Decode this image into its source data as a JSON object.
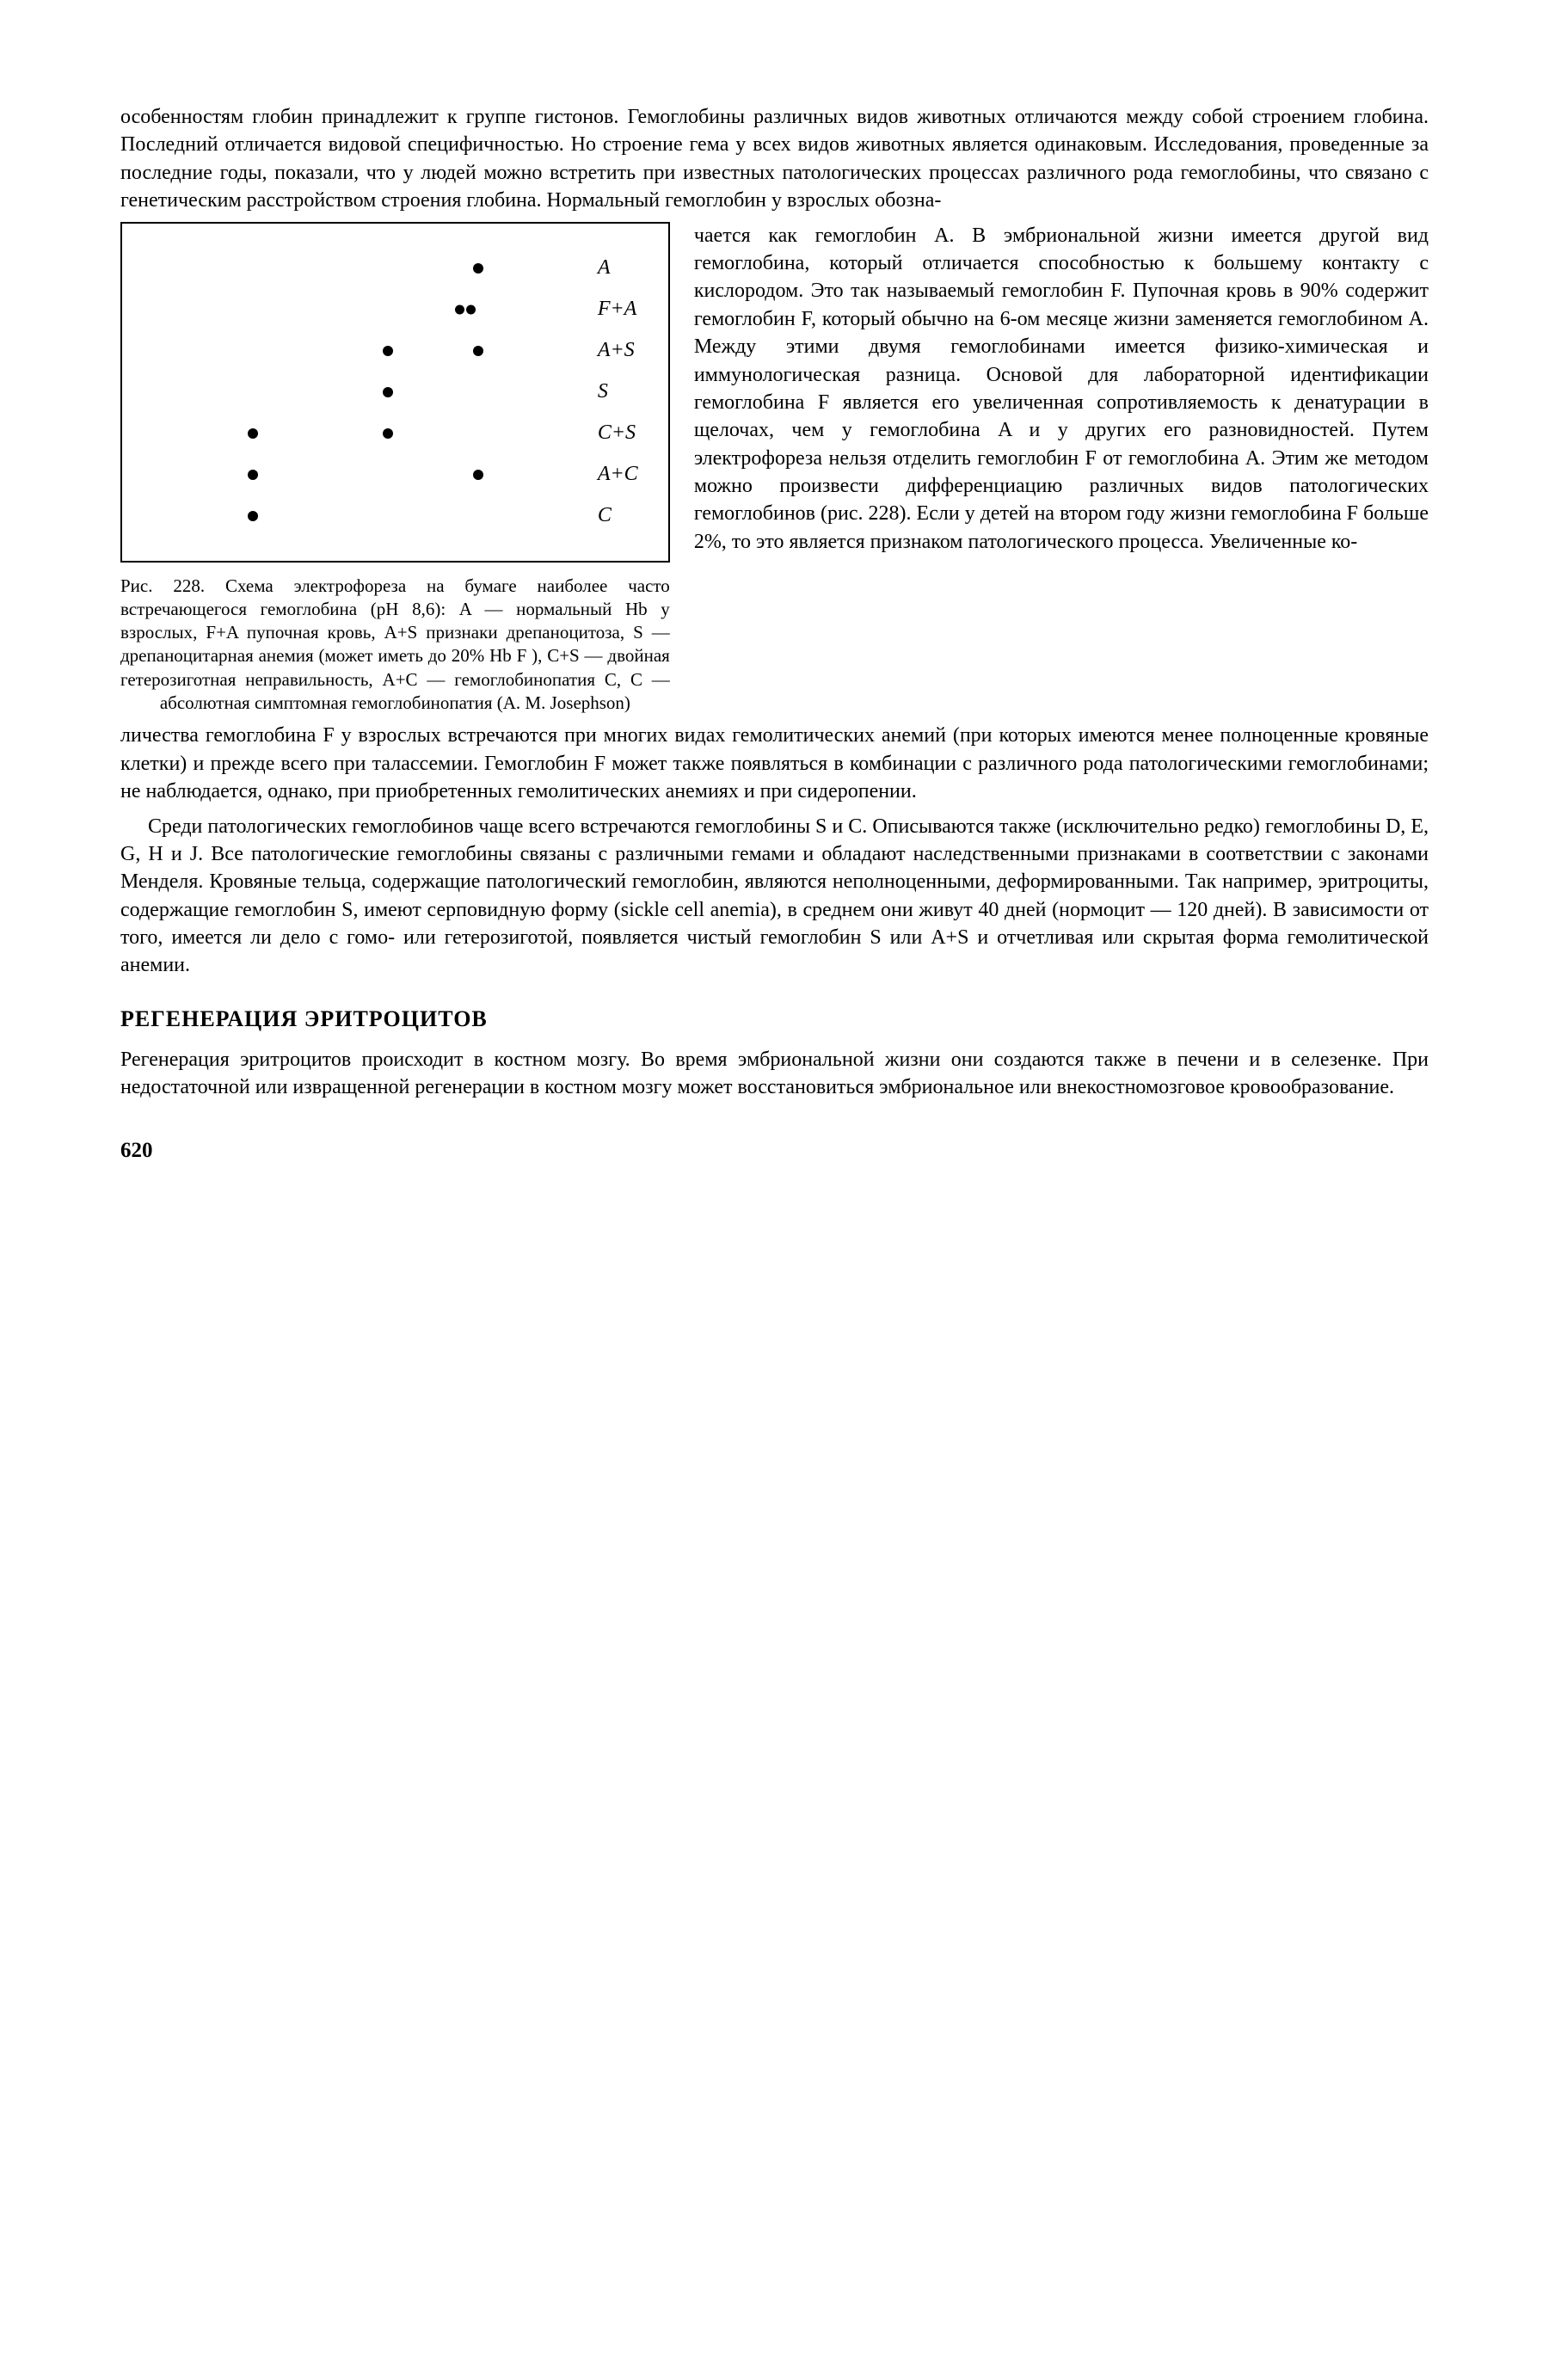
{
  "para_top": "особенностям глобин принадлежит к группе гистонов. Гемоглобины различных видов животных отличаются между собой строением глобина. Последний отличается видовой специфичностью. Но строение гема у всех видов животных является одинаковым. Исследования, проведенные за последние годы, показали, что у людей можно встретить при известных патологических процессах различного рода гемоглобины, что связано с генетическим расстройством строения глобина. Нормальный гемоглобин у взрослых обозна-",
  "figure": {
    "rows": [
      {
        "label": "A",
        "dots": [
          74
        ]
      },
      {
        "label": "F+A",
        "dots": [
          70,
          74
        ],
        "pair": true
      },
      {
        "label": "A+S",
        "dots": [
          54,
          74
        ]
      },
      {
        "label": "S",
        "dots": [
          54
        ]
      },
      {
        "label": "C+S",
        "dots": [
          24,
          54
        ]
      },
      {
        "label": "A+C",
        "dots": [
          24,
          74
        ]
      },
      {
        "label": "C",
        "dots": [
          24
        ]
      }
    ],
    "border_color": "#000000",
    "dot_color": "#000000"
  },
  "caption": "Рис. 228. Схема электрофореза на бумаге наиболее часто встречающегося гемоглобина (pH 8,6): A — нормальный Hb у взрослых, F+A пупочная кровь, A+S признаки дрепаноцитоза, S — дрепаноцитарная анемия (может иметь до 20% Hb F ), C+S — двойная гетерозиготная неправильность, A+C — гемоглобинопатия C, C — абсолютная симптомная гемоглобинопатия (A. M. Josephson)",
  "right_text": "чается как гемоглобин A. В эмбриональной жизни имеется другой вид гемоглобина, который отличается способностью к большему контакту с кислородом. Это так называемый гемоглобин F. Пупочная кровь в 90% содержит гемоглобин F, который обычно на 6-ом месяце жизни заменяется гемоглобином A. Между этими двумя гемоглобинами имеется физико-химическая и иммунологическая разница. Основой для лабораторной идентификации гемоглобина F является его увеличенная сопротивляемость к денатурации в щелочах, чем у гемоглобина A и у других его разновидностей. Путем электрофореза нельзя отделить гемоглобин F от гемоглобина A. Этим же методом можно произвести дифференциацию различных видов патологических гемоглобинов (рис. 228). Если у детей на втором году жизни гемоглобина F больше 2%, то это является признаком патологического процесса. Увеличенные ко-",
  "para_mid": "личества гемоглобина F у взрослых встречаются при многих видах гемолитических анемий (при которых имеются менее полноценные кровяные клетки) и прежде всего при талассемии. Гемоглобин F может также появляться в комбинации с различного рода патологическими гемоглобинами; не наблюдается, однако, при приобретенных гемолитических анемиях и при сидеропении.",
  "para_bottom": "Среди патологических гемоглобинов чаще всего встречаются гемоглобины S и C. Описываются также (исключительно редко) гемоглобины D, E, G, H и J. Все патологические гемоглобины связаны с различными гемами и обладают наследственными признаками в соответствии с законами Менделя. Кровяные тельца, содержащие патологический гемоглобин, являются неполноценными, деформированными. Так например, эритроциты, содержащие гемоглобин S, имеют серповидную форму (sickle cell anemia), в среднем они живут 40 дней (нормоцит — 120 дней). В зависимости от того, имеется ли дело с гомо- или гетерозиготой, появляется чистый гемоглобин S или A+S и отчетливая или скрытая форма гемолитической анемии.",
  "heading": "РЕГЕНЕРАЦИЯ ЭРИТРОЦИТОВ",
  "para_regen": "Регенерация эритроцитов происходит в костном мозгу. Во время эмбриональной жизни они создаются также в печени и в селезенке. При недостаточной или извращенной регенерации в костном мозгу может восстановиться эмбриональное или внекостномозговое кровообразование.",
  "page_number": "620"
}
